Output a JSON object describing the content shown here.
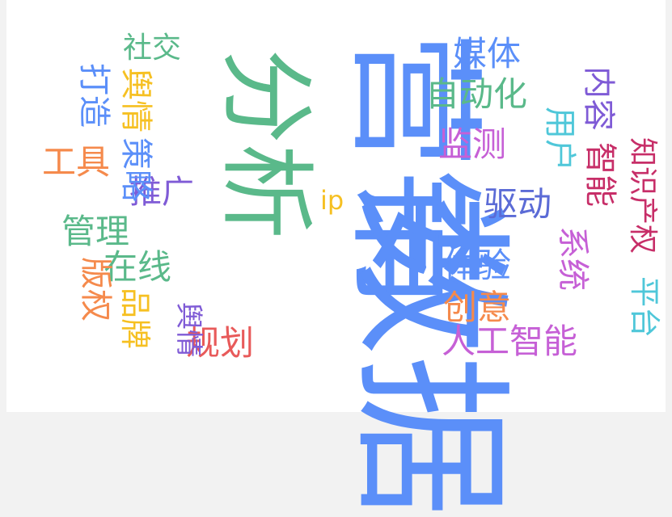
{
  "wordcloud": {
    "words": [
      {
        "text": "营销",
        "color": "#5b8ff9"
      },
      {
        "text": "分析",
        "color": "#5ab98a"
      },
      {
        "text": "数据",
        "color": "#5b8ff9"
      },
      {
        "text": "社交",
        "color": "#5ab98a"
      },
      {
        "text": "媒体",
        "color": "#5b8ff9"
      },
      {
        "text": "自动化",
        "color": "#5ab98a"
      },
      {
        "text": "监测",
        "color": "#c660d6"
      },
      {
        "text": "打造",
        "color": "#5b8ff9"
      },
      {
        "text": "舆情",
        "color": "#f6c022"
      },
      {
        "text": "内容",
        "color": "#7f5bd6"
      },
      {
        "text": "用户",
        "color": "#4fc7d9"
      },
      {
        "text": "策略",
        "color": "#5b8ff9"
      },
      {
        "text": "工具",
        "color": "#f58a4c"
      },
      {
        "text": "智能",
        "color": "#c72e68"
      },
      {
        "text": "知识产权",
        "color": "#c72e68"
      },
      {
        "text": "推广",
        "color": "#7f5bd6"
      },
      {
        "text": "ip",
        "color": "#f6c022"
      },
      {
        "text": "驱动",
        "color": "#5b6bd6"
      },
      {
        "text": "管理",
        "color": "#5ab98a"
      },
      {
        "text": "系统",
        "color": "#c660d6"
      },
      {
        "text": "体验",
        "color": "#5b8ff9"
      },
      {
        "text": "在线",
        "color": "#5ab98a"
      },
      {
        "text": "版权",
        "color": "#f58a4c"
      },
      {
        "text": "平台",
        "color": "#4fc7d9"
      },
      {
        "text": "品牌",
        "color": "#f6c022"
      },
      {
        "text": "创意",
        "color": "#f58a4c"
      },
      {
        "text": "舆情",
        "color": "#7f5bd6"
      },
      {
        "text": "规划",
        "color": "#e85a5a"
      },
      {
        "text": "人工智能",
        "color": "#c660d6"
      }
    ]
  }
}
